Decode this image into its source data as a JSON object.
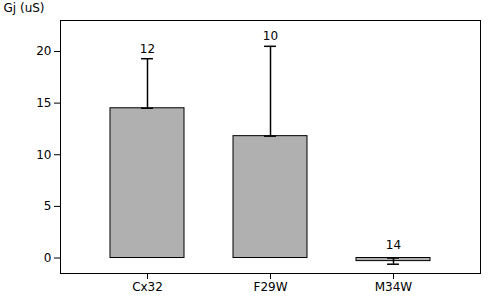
{
  "chart_data": {
    "type": "bar",
    "categories": [
      "Cx32",
      "F29W",
      "M34W"
    ],
    "values": [
      14.5,
      11.8,
      -0.3
    ],
    "errors_upper": [
      4.8,
      8.7,
      0.3
    ],
    "errors_lower": [
      0.0,
      0.0,
      0.3
    ],
    "annotations": [
      "12",
      "10",
      "14"
    ],
    "color": "#b0b0b0",
    "ylabel": "Gj (uS)",
    "ylim": [
      -1.5,
      23
    ],
    "yticks": [
      0,
      5,
      10,
      15,
      20
    ],
    "grid": false
  }
}
